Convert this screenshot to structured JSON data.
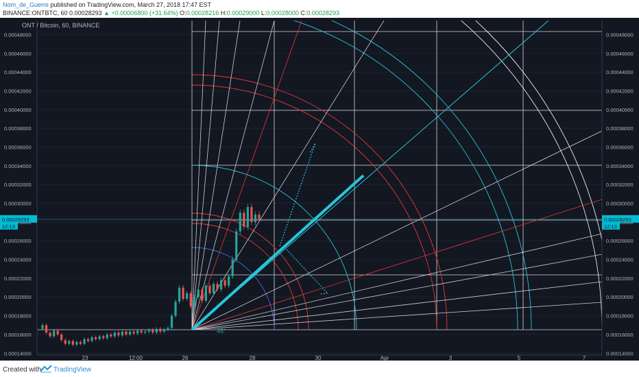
{
  "header": {
    "author": "Nom_de_Guerre",
    "published": " published on TradingView.com, March 27, 2018 17:47 EST",
    "symbol": "BINANCE:ONTBTC, 60",
    "price": "0.00028293",
    "change": "▲ +0.00006800 (+31.64%)",
    "o_label": "O:",
    "o_value": "0.00028216",
    "h_label": "H:",
    "h_value": "0.00029000",
    "l_label": "L:",
    "l_value": "0.00028000",
    "c_label": "C:",
    "c_value": "0.00028293"
  },
  "chart_data": {
    "type": "candlestick",
    "legend": "ONT / Bitcoin, 60, BINANCE",
    "y_ticks": [
      "0.00014000",
      "0.00016000",
      "0.00018000",
      "0.00020000",
      "0.00022000",
      "0.00024000",
      "0.00026000",
      "0.00028000",
      "0.00030000",
      "0.00032000",
      "0.00034000",
      "0.00036000",
      "0.00038000",
      "0.00040000",
      "0.00042000",
      "0.00044000",
      "0.00046000",
      "0.00048000"
    ],
    "ylim": [
      0.000138,
      0.000495
    ],
    "x_ticks": [
      "23",
      "12:00",
      "26",
      "28",
      "30",
      "Apr",
      "3",
      "5",
      "7"
    ],
    "price_tag": "0.00028293",
    "countdown": "12:13",
    "angle_label": "45°",
    "price_path": [
      [
        0.000166,
        0.00017
      ],
      [
        0.00017,
        0.000162
      ],
      [
        0.000162,
        0.000158
      ],
      [
        0.000158,
        0.000164
      ],
      [
        0.000164,
        0.00016
      ],
      [
        0.00016,
        0.000154
      ],
      [
        0.000154,
        0.00015
      ],
      [
        0.00015,
        0.000153
      ],
      [
        0.000153,
        0.000149
      ],
      [
        0.000149,
        0.000152
      ],
      [
        0.000152,
        0.00015
      ],
      [
        0.00015,
        0.000155
      ],
      [
        0.000155,
        0.000153
      ],
      [
        0.000153,
        0.000157
      ],
      [
        0.000157,
        0.000155
      ],
      [
        0.000155,
        0.000158
      ],
      [
        0.000158,
        0.000156
      ],
      [
        0.000156,
        0.00016
      ],
      [
        0.00016,
        0.000158
      ],
      [
        0.000158,
        0.000162
      ],
      [
        0.000162,
        0.000159
      ],
      [
        0.000159,
        0.000163
      ],
      [
        0.000163,
        0.00016
      ],
      [
        0.00016,
        0.000163
      ],
      [
        0.000163,
        0.000161
      ],
      [
        0.000161,
        0.000164
      ],
      [
        0.000164,
        0.000162
      ],
      [
        0.000162,
        0.000163
      ],
      [
        0.000163,
        0.000165
      ],
      [
        0.000165,
        0.000162
      ],
      [
        0.000162,
        0.000166
      ],
      [
        0.000166,
        0.000163
      ],
      [
        0.000163,
        0.000165
      ],
      [
        0.000165,
        0.000167
      ],
      [
        0.000167,
        0.00018
      ],
      [
        0.00018,
        0.000195
      ],
      [
        0.000195,
        0.00021
      ],
      [
        0.00021,
        0.000198
      ],
      [
        0.000198,
        0.000204
      ],
      [
        0.000204,
        0.00019
      ],
      [
        0.00019,
        0.0002
      ],
      [
        0.0002,
        0.000208
      ],
      [
        0.000208,
        0.000196
      ],
      [
        0.000196,
        0.000212
      ],
      [
        0.000212,
        0.000204
      ],
      [
        0.000204,
        0.000214
      ],
      [
        0.000214,
        0.000208
      ],
      [
        0.000208,
        0.000218
      ],
      [
        0.000218,
        0.000212
      ],
      [
        0.000212,
        0.000222
      ],
      [
        0.000222,
        0.00024
      ],
      [
        0.00024,
        0.00027
      ],
      [
        0.00027,
        0.00029
      ],
      [
        0.00029,
        0.000275
      ],
      [
        0.000275,
        0.000296
      ],
      [
        0.000296,
        0.00028
      ],
      [
        0.00028,
        0.000288
      ],
      [
        0.000288,
        0.000283
      ]
    ]
  }
}
